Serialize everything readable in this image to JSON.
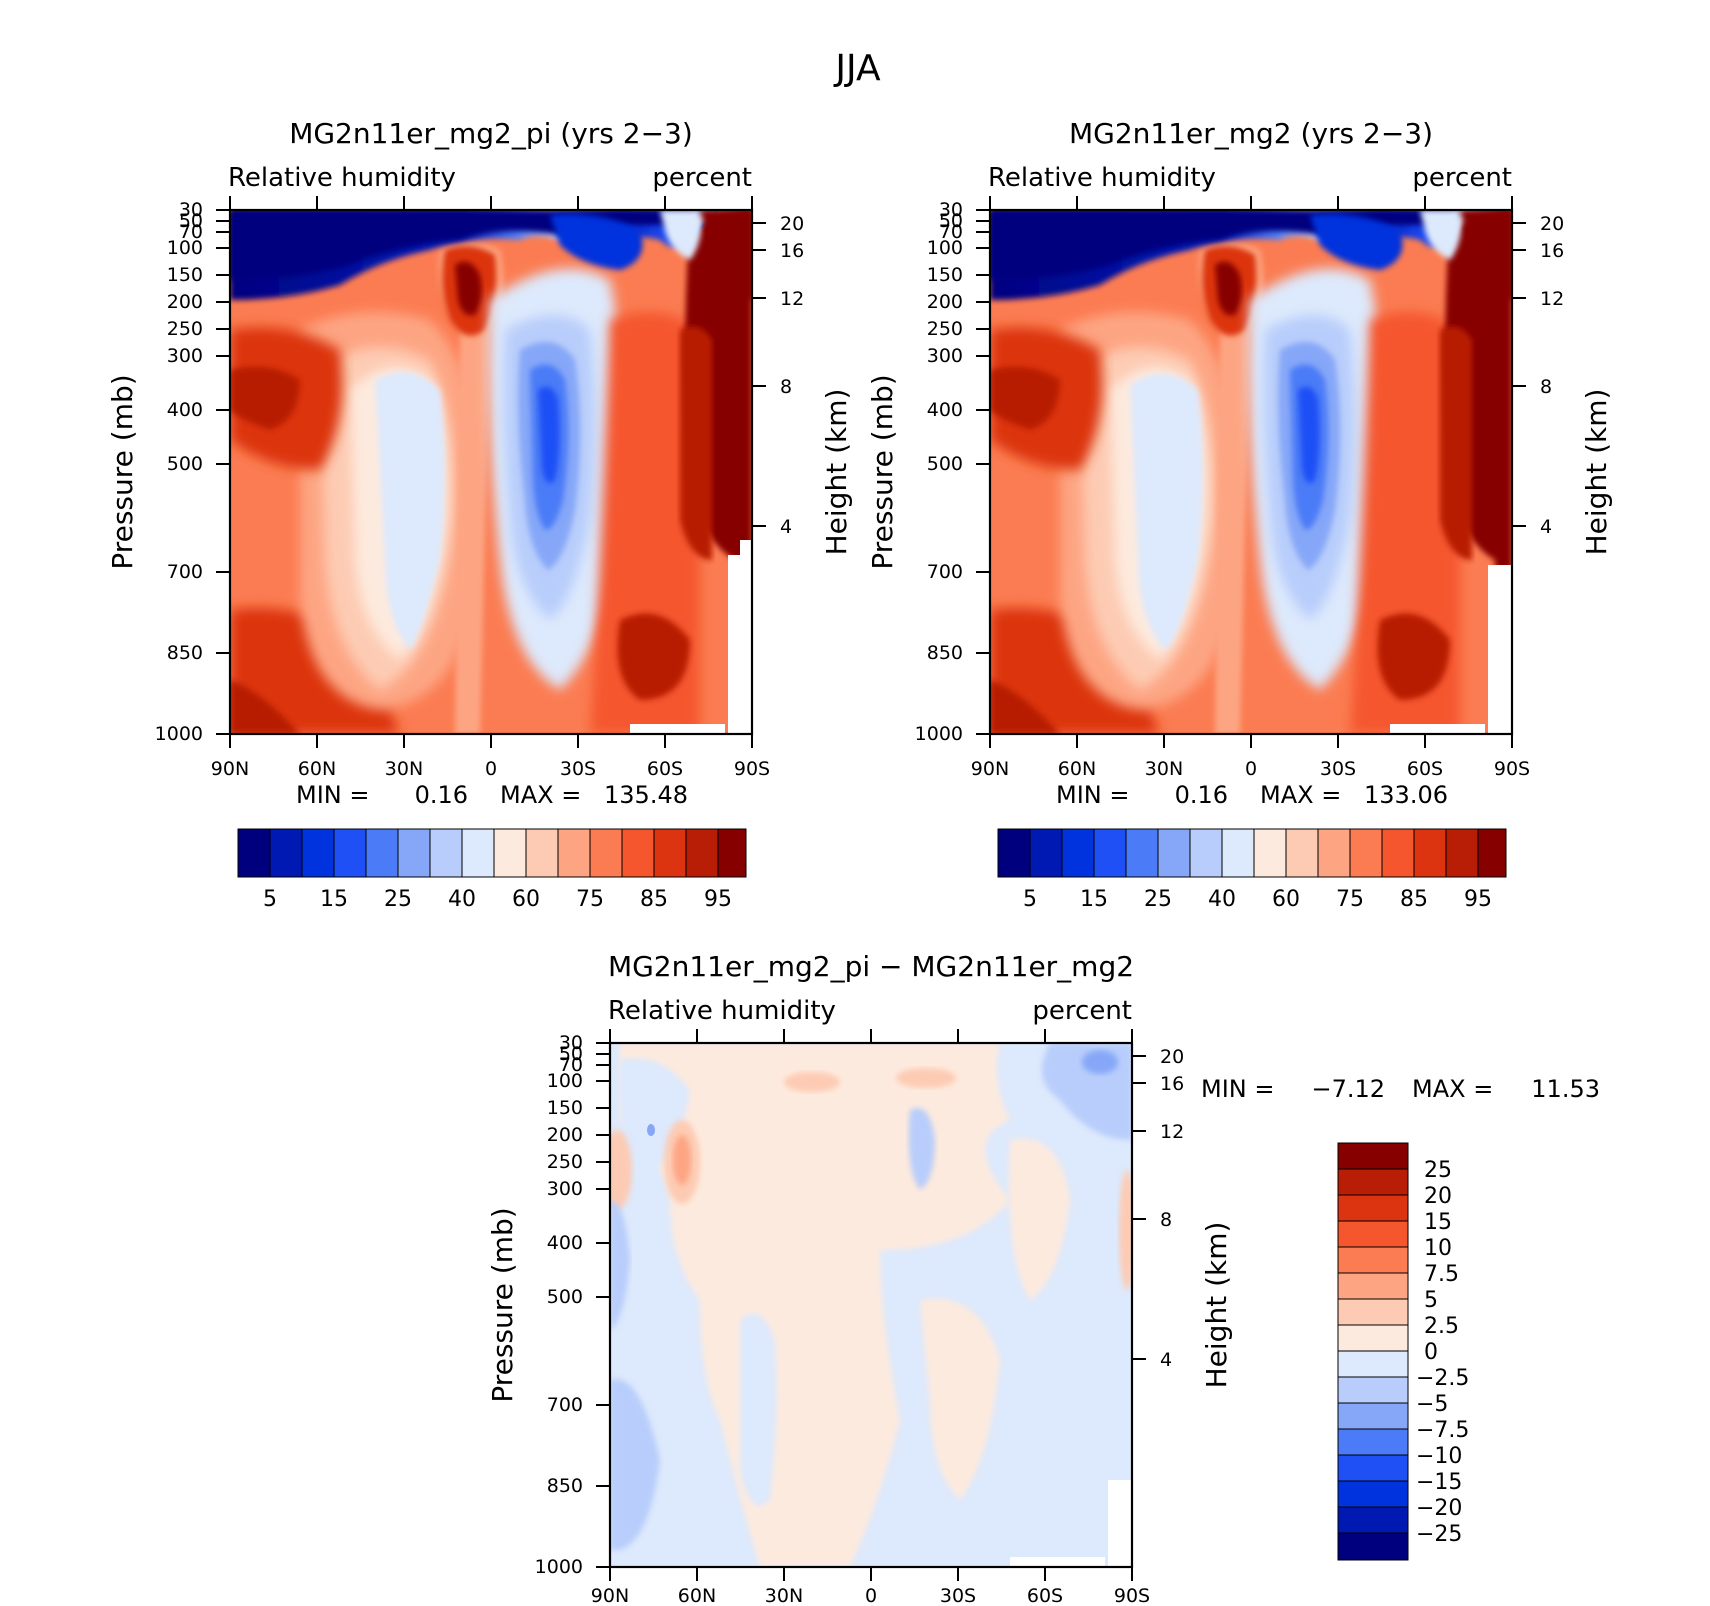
{
  "figure": {
    "title": "JJA"
  },
  "colors": {
    "absolute_palette": [
      "#00007f",
      "#0019b3",
      "#0033dd",
      "#1f50f6",
      "#4b7bf7",
      "#86a7f8",
      "#b8cdfb",
      "#dde9fc",
      "#fdeade",
      "#fdcbb3",
      "#fda583",
      "#fb7c52",
      "#f5562d",
      "#dc3410",
      "#b81e05",
      "#870000"
    ],
    "difference_palette": [
      "#00007f",
      "#0019b3",
      "#0033dd",
      "#1f50f6",
      "#4b7bf7",
      "#86a7f8",
      "#b8cdfb",
      "#dde9fc",
      "#fdeade",
      "#fdcbb3",
      "#fda583",
      "#fb7c52",
      "#f5562d",
      "#dc3410",
      "#b81e05",
      "#870000"
    ]
  },
  "chart_data": [
    {
      "type": "heatmap",
      "id": "panel1",
      "title": "MG2n11er_mg2_pi (yrs 2−3)",
      "left_label": "Relative  humidity",
      "right_label": "percent",
      "ylabel": "Pressure  (mb)",
      "y2label": "Height  (km)",
      "x_ticks": [
        "90N",
        "60N",
        "30N",
        "0",
        "30S",
        "60S",
        "90S"
      ],
      "x_values": [
        90,
        60,
        30,
        0,
        -30,
        -60,
        -90
      ],
      "y_ticks": [
        "30",
        "50",
        "70",
        "100",
        "150",
        "200",
        "250",
        "300",
        "400",
        "500",
        "700",
        "850",
        "1000"
      ],
      "y_values": [
        30,
        50,
        70,
        100,
        150,
        200,
        250,
        300,
        400,
        500,
        700,
        850,
        1000
      ],
      "y2_ticks": [
        "20",
        "16",
        "12",
        "8",
        "4"
      ],
      "y2_values": [
        20,
        16,
        12,
        8,
        4
      ],
      "min_label": "MIN =",
      "min_value": "0.16",
      "max_label": "MAX =",
      "max_value": "135.48",
      "contour_levels": [
        "5",
        "15",
        "25",
        "40",
        "60",
        "75",
        "85",
        "95"
      ],
      "xlim": [
        90,
        -90
      ],
      "ylim": [
        1000,
        30
      ]
    },
    {
      "type": "heatmap",
      "id": "panel2",
      "title": "MG2n11er_mg2 (yrs 2−3)",
      "left_label": "Relative  humidity",
      "right_label": "percent",
      "ylabel": "Pressure  (mb)",
      "y2label": "Height  (km)",
      "x_ticks": [
        "90N",
        "60N",
        "30N",
        "0",
        "30S",
        "60S",
        "90S"
      ],
      "x_values": [
        90,
        60,
        30,
        0,
        -30,
        -60,
        -90
      ],
      "y_ticks": [
        "30",
        "50",
        "70",
        "100",
        "150",
        "200",
        "250",
        "300",
        "400",
        "500",
        "700",
        "850",
        "1000"
      ],
      "y_values": [
        30,
        50,
        70,
        100,
        150,
        200,
        250,
        300,
        400,
        500,
        700,
        850,
        1000
      ],
      "y2_ticks": [
        "20",
        "16",
        "12",
        "8",
        "4"
      ],
      "y2_values": [
        20,
        16,
        12,
        8,
        4
      ],
      "min_label": "MIN =",
      "min_value": "0.16",
      "max_label": "MAX =",
      "max_value": "133.06",
      "contour_levels": [
        "5",
        "15",
        "25",
        "40",
        "60",
        "75",
        "85",
        "95"
      ],
      "xlim": [
        90,
        -90
      ],
      "ylim": [
        1000,
        30
      ]
    },
    {
      "type": "heatmap",
      "id": "panel3",
      "title": "MG2n11er_mg2_pi − MG2n11er_mg2",
      "left_label": "Relative  humidity",
      "right_label": "percent",
      "ylabel": "Pressure  (mb)",
      "y2label": "Height  (km)",
      "x_ticks": [
        "90N",
        "60N",
        "30N",
        "0",
        "30S",
        "60S",
        "90S"
      ],
      "x_values": [
        90,
        60,
        30,
        0,
        -30,
        -60,
        -90
      ],
      "y_ticks": [
        "30",
        "50",
        "70",
        "100",
        "150",
        "200",
        "250",
        "300",
        "400",
        "500",
        "700",
        "850",
        "1000"
      ],
      "y_values": [
        30,
        50,
        70,
        100,
        150,
        200,
        250,
        300,
        400,
        500,
        700,
        850,
        1000
      ],
      "y2_ticks": [
        "20",
        "16",
        "12",
        "8",
        "4"
      ],
      "y2_values": [
        20,
        16,
        12,
        8,
        4
      ],
      "min_label": "MIN =",
      "min_value": "−7.12",
      "max_label": "MAX =",
      "max_value": "11.53",
      "contour_levels": [
        "25",
        "20",
        "15",
        "10",
        "7.5",
        "5",
        "2.5",
        "0",
        "−2.5",
        "−5",
        "−7.5",
        "−10",
        "−15",
        "−20",
        "−25"
      ],
      "xlim": [
        90,
        -90
      ],
      "ylim": [
        1000,
        30
      ]
    }
  ]
}
